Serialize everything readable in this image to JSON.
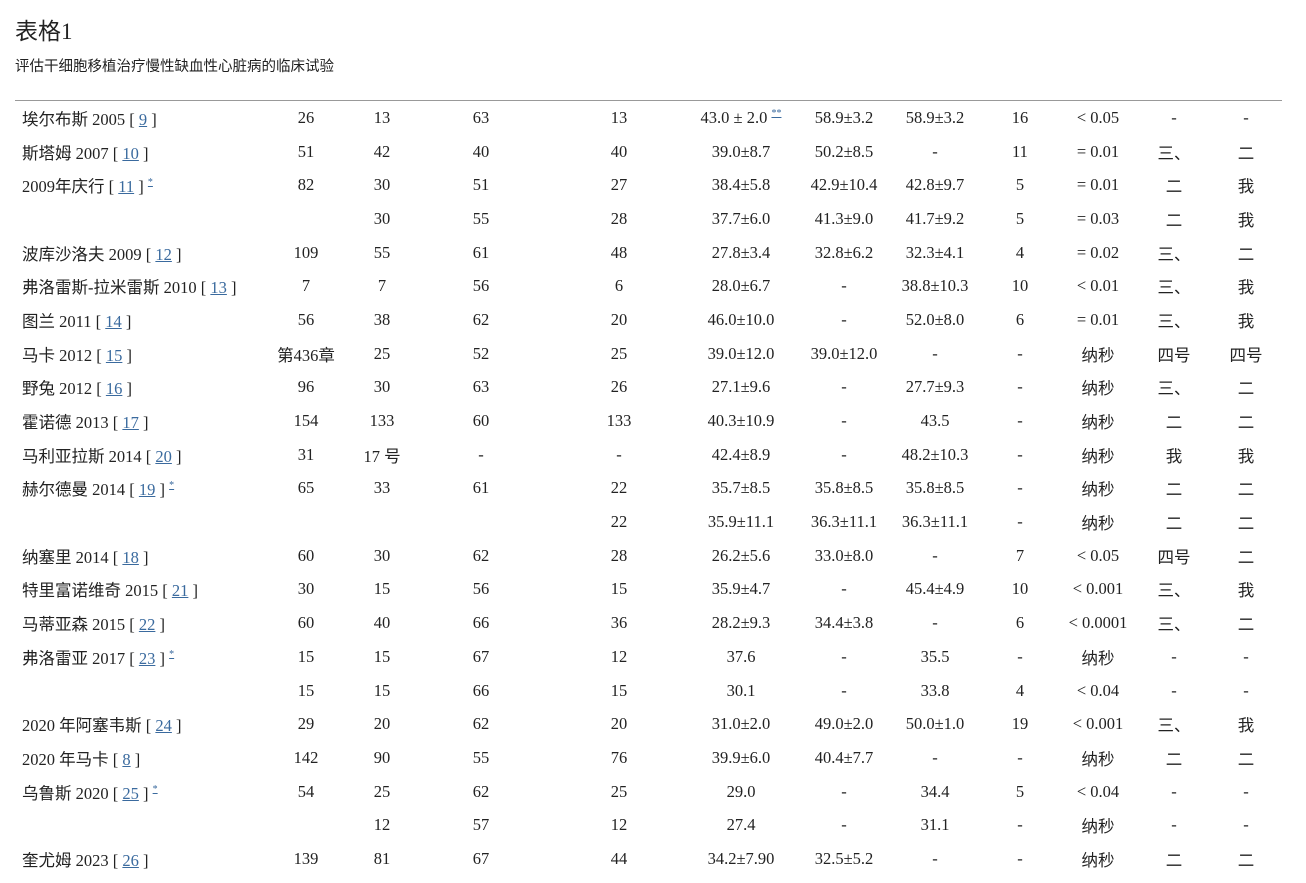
{
  "title": "表格1",
  "caption": "评估干细胞移植治疗慢性缺血性心脏病的临床试验",
  "rows": [
    {
      "name": "埃尔布斯 2005",
      "ref": "9",
      "note": "",
      "cells": [
        "26",
        "13",
        "63",
        "13",
        "43.0 ± 2.0",
        "58.9±3.2",
        "58.9±3.2",
        "16",
        "< 0.05",
        "-",
        "-"
      ],
      "cell_note": "**"
    },
    {
      "name": "斯塔姆 2007",
      "ref": "10",
      "note": "",
      "cells": [
        "51",
        "42",
        "40",
        "40",
        "39.0±8.7",
        "50.2±8.5",
        "-",
        "11",
        "= 0.01",
        "三、",
        "二"
      ]
    },
    {
      "name": "2009年庆行",
      "ref": "11",
      "note": "*",
      "cells": [
        "82",
        "30",
        "51",
        "27",
        "38.4±5.8",
        "42.9±10.4",
        "42.8±9.7",
        "5",
        "= 0.01",
        "二",
        "我"
      ]
    },
    {
      "name": "",
      "ref": "",
      "note": "",
      "cells": [
        "",
        "30",
        "55",
        "28",
        "37.7±6.0",
        "41.3±9.0",
        "41.7±9.2",
        "5",
        "= 0.03",
        "二",
        "我"
      ]
    },
    {
      "name": "波库沙洛夫 2009",
      "ref": "12",
      "note": "",
      "cells": [
        "109",
        "55",
        "61",
        "48",
        "27.8±3.4",
        "32.8±6.2",
        "32.3±4.1",
        "4",
        "= 0.02",
        "三、",
        "二"
      ]
    },
    {
      "name": "弗洛雷斯-拉米雷斯 2010",
      "ref": "13",
      "note": "",
      "cells": [
        "7",
        "7",
        "56",
        "6",
        "28.0±6.7",
        "-",
        "38.8±10.3",
        "10",
        "< 0.01",
        "三、",
        "我"
      ]
    },
    {
      "name": "图兰 2011",
      "ref": "14",
      "note": "",
      "cells": [
        "56",
        "38",
        "62",
        "20",
        "46.0±10.0",
        "-",
        "52.0±8.0",
        "6",
        "= 0.01",
        "三、",
        "我"
      ]
    },
    {
      "name": "马卡 2012",
      "ref": "15",
      "note": "",
      "cells": [
        "第436章",
        "25",
        "52",
        "25",
        "39.0±12.0",
        "39.0±12.0",
        "-",
        "-",
        "纳秒",
        "四号",
        "四号"
      ]
    },
    {
      "name": "野兔 2012",
      "ref": "16",
      "note": "",
      "cells": [
        "96",
        "30",
        "63",
        "26",
        "27.1±9.6",
        "-",
        "27.7±9.3",
        "-",
        "纳秒",
        "三、",
        "二"
      ]
    },
    {
      "name": "霍诺德 2013",
      "ref": "17",
      "note": "",
      "cells": [
        "154",
        "133",
        "60",
        "133",
        "40.3±10.9",
        "-",
        "43.5",
        "-",
        "纳秒",
        "二",
        "二"
      ]
    },
    {
      "name": "马利亚拉斯 2014",
      "ref": "20",
      "note": "",
      "cells": [
        "31",
        "17 号",
        "-",
        "-",
        "42.4±8.9",
        "-",
        "48.2±10.3",
        "-",
        "纳秒",
        "我",
        "我"
      ]
    },
    {
      "name": "赫尔德曼 2014",
      "ref": "19",
      "note": "*",
      "cells": [
        "65",
        "33",
        "61",
        "22",
        "35.7±8.5",
        "35.8±8.5",
        "35.8±8.5",
        "-",
        "纳秒",
        "二",
        "二"
      ]
    },
    {
      "name": "",
      "ref": "",
      "note": "",
      "cells": [
        "",
        "",
        "",
        "22",
        "35.9±11.1",
        "36.3±11.1",
        "36.3±11.1",
        "-",
        "纳秒",
        "二",
        "二"
      ]
    },
    {
      "name": "纳塞里 2014",
      "ref": "18",
      "note": "",
      "cells": [
        "60",
        "30",
        "62",
        "28",
        "26.2±5.6",
        "33.0±8.0",
        "-",
        "7",
        "< 0.05",
        "四号",
        "二"
      ]
    },
    {
      "name": "特里富诺维奇 2015",
      "ref": "21",
      "note": "",
      "cells": [
        "30",
        "15",
        "56",
        "15",
        "35.9±4.7",
        "-",
        "45.4±4.9",
        "10",
        "< 0.001",
        "三、",
        "我"
      ]
    },
    {
      "name": "马蒂亚森 2015",
      "ref": "22",
      "note": "",
      "cells": [
        "60",
        "40",
        "66",
        "36",
        "28.2±9.3",
        "34.4±3.8",
        "-",
        "6",
        "< 0.0001",
        "三、",
        "二"
      ]
    },
    {
      "name": "弗洛雷亚 2017",
      "ref": "23",
      "note": "*",
      "cells": [
        "15",
        "15",
        "67",
        "12",
        "37.6",
        "-",
        "35.5",
        "-",
        "纳秒",
        "-",
        "-"
      ]
    },
    {
      "name": "",
      "ref": "",
      "note": "",
      "cells": [
        "15",
        "15",
        "66",
        "15",
        "30.1",
        "-",
        "33.8",
        "4",
        "< 0.04",
        "-",
        "-"
      ]
    },
    {
      "name": "2020 年阿塞韦斯",
      "ref": "24",
      "note": "",
      "cells": [
        "29",
        "20",
        "62",
        "20",
        "31.0±2.0",
        "49.0±2.0",
        "50.0±1.0",
        "19",
        "< 0.001",
        "三、",
        "我"
      ]
    },
    {
      "name": "2020 年马卡",
      "ref": "8",
      "note": "",
      "cells": [
        "142",
        "90",
        "55",
        "76",
        "39.9±6.0",
        "40.4±7.7",
        "-",
        "-",
        "纳秒",
        "二",
        "二"
      ]
    },
    {
      "name": "乌鲁斯 2020",
      "ref": "25",
      "note": "*",
      "cells": [
        "54",
        "25",
        "62",
        "25",
        "29.0",
        "-",
        "34.4",
        "5",
        "< 0.04",
        "-",
        "-"
      ]
    },
    {
      "name": "",
      "ref": "",
      "note": "",
      "cells": [
        "",
        "12",
        "57",
        "12",
        "27.4",
        "-",
        "31.1",
        "-",
        "纳秒",
        "-",
        "-"
      ]
    },
    {
      "name": "奎尤姆 2023",
      "ref": "26",
      "note": "",
      "cells": [
        "139",
        "81",
        "67",
        "44",
        "34.2±7.90",
        "32.5±5.2",
        "-",
        "-",
        "纳秒",
        "二",
        "二"
      ]
    }
  ]
}
